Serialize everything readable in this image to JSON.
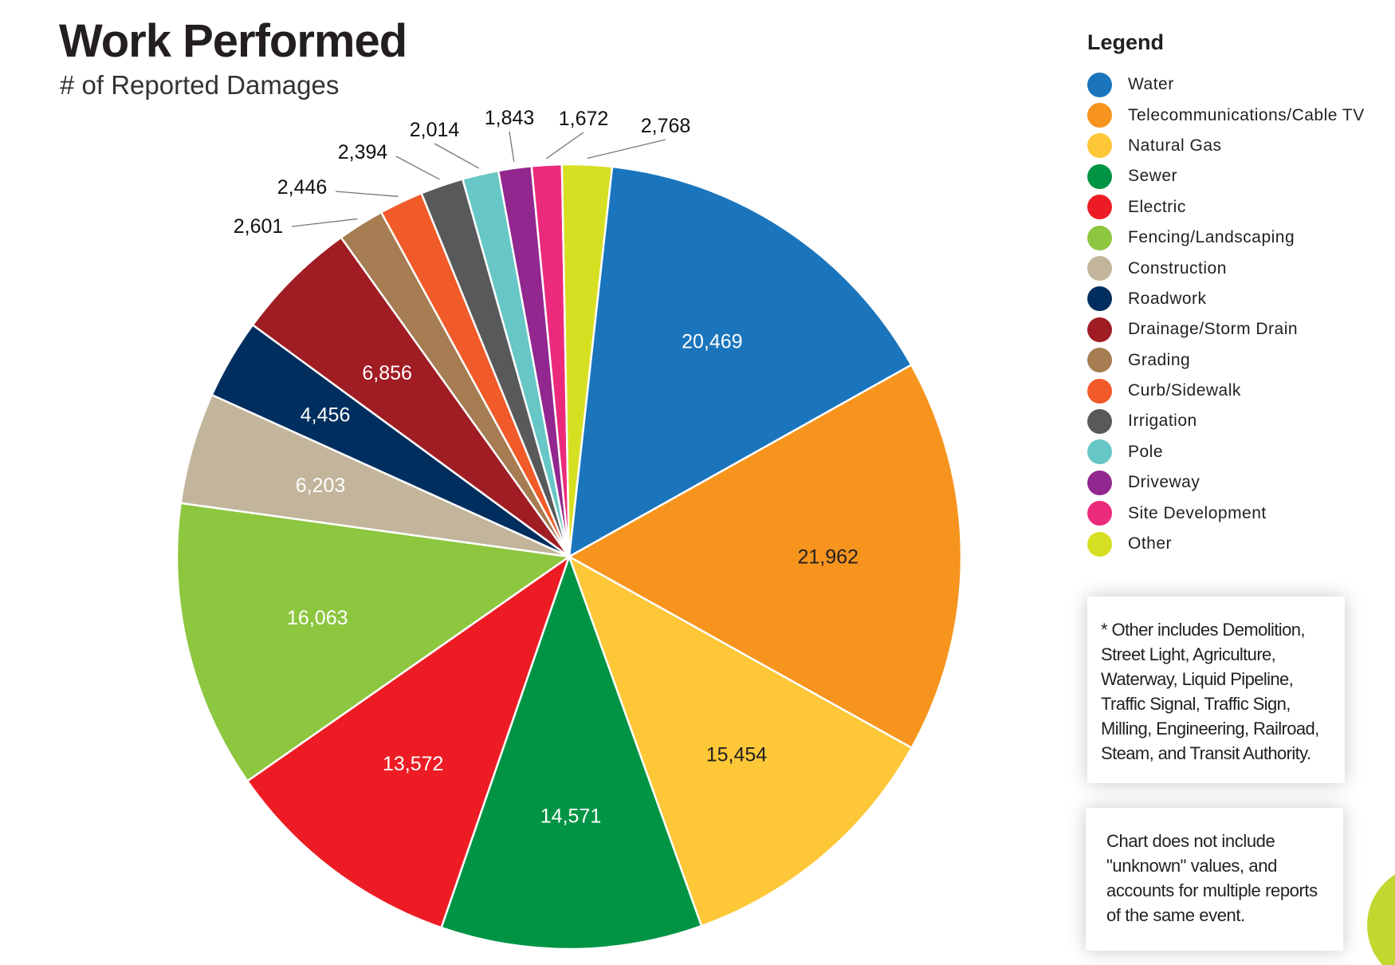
{
  "title": "Work Performed",
  "subtitle": "# of Reported Damages",
  "legend_title": "Legend",
  "notes": [
    "* Other includes Demolition, Street Light, Agriculture, Waterway, Liquid Pipeline, Traffic Signal, Traffic Sign, Milling, Engineering, Railroad, Steam, and Transit Authority.",
    "Chart does not include \"unknown\" values, and accounts for multiple reports of the same event."
  ],
  "chart_data": {
    "type": "pie",
    "title": "Work Performed",
    "subtitle": "# of Reported Damages",
    "legend_position": "right",
    "categories": [
      "Water",
      "Telecommunications/Cable TV",
      "Natural Gas",
      "Sewer",
      "Electric",
      "Fencing/Landscaping",
      "Construction",
      "Roadwork",
      "Drainage/Storm Drain",
      "Grading",
      "Curb/Sidewalk",
      "Irrigation",
      "Pole",
      "Driveway",
      "Site Development",
      "Other"
    ],
    "values": [
      20469,
      21962,
      15454,
      14571,
      13572,
      16063,
      6203,
      4456,
      6856,
      2601,
      2446,
      2394,
      2014,
      1843,
      1672,
      2768
    ],
    "labels": [
      "20,469",
      "21,962",
      "15,454",
      "14,571",
      "13,572",
      "16,063",
      "6,203",
      "4,456",
      "6,856",
      "2,601",
      "2,446",
      "2,394",
      "2,014",
      "1,843",
      "1,672",
      "2,768"
    ],
    "colors": [
      "#1b75bc",
      "#f7941d",
      "#fdc737",
      "#009444",
      "#ed1c24",
      "#8dc63f",
      "#c2b59b",
      "#002e5f",
      "#a01d23",
      "#a67c52",
      "#f15a29",
      "#58595b",
      "#67c6c6",
      "#92278f",
      "#ec2a7b",
      "#d7df23"
    ]
  }
}
